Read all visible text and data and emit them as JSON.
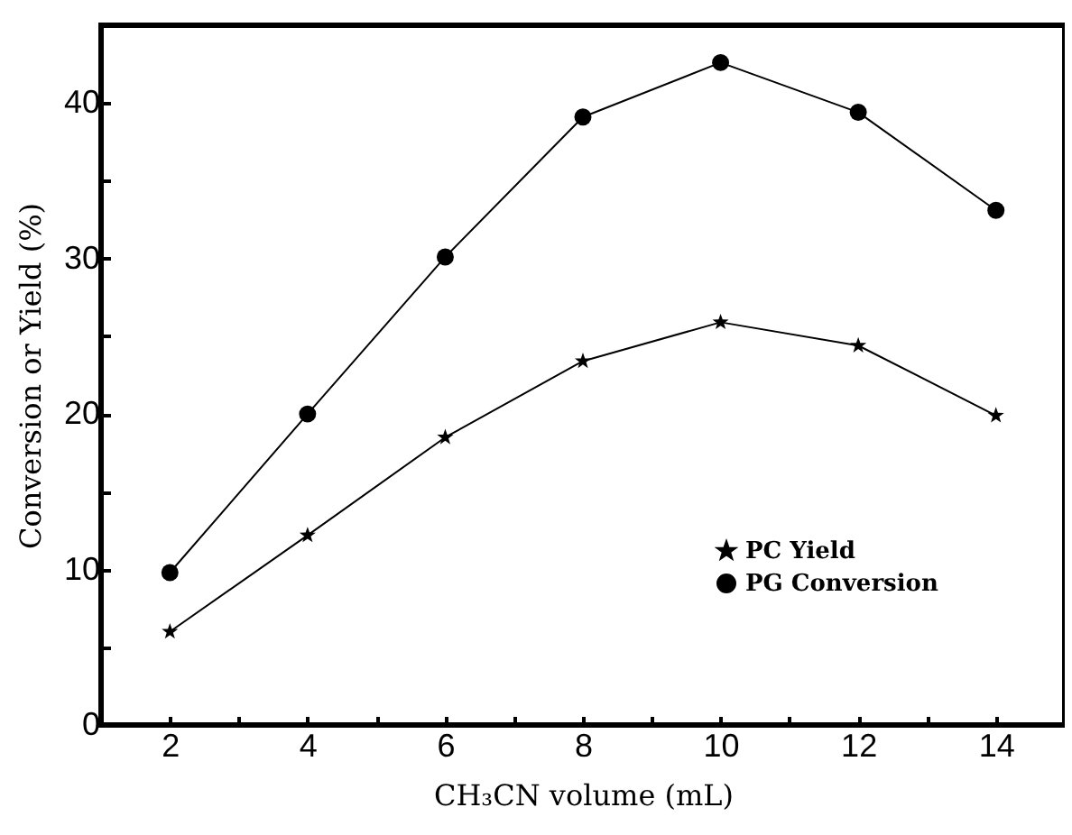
{
  "chart_data": {
    "type": "line",
    "xlabel": "CH₃CN volume  (mL)",
    "ylabel": "Conversion or Yield (%)",
    "x": [
      2,
      4,
      6,
      8,
      10,
      12,
      14
    ],
    "series": [
      {
        "name": "PC Yield",
        "color": "#000000",
        "marker": "star",
        "values": [
          6.0,
          12.2,
          18.5,
          23.4,
          25.9,
          24.4,
          19.9
        ]
      },
      {
        "name": "PG Conversion",
        "color": "#000000",
        "marker": "circle",
        "values": [
          9.8,
          20.0,
          30.1,
          39.1,
          42.6,
          39.4,
          33.1
        ]
      }
    ],
    "xlim": [
      1,
      15
    ],
    "xticks": [
      {
        "value": 1,
        "label": null
      },
      2,
      {
        "value": 3,
        "label": null
      },
      4,
      {
        "value": 5,
        "label": null
      },
      6,
      {
        "value": 7,
        "label": null
      },
      8,
      {
        "value": 9,
        "label": null
      },
      10,
      {
        "value": 11,
        "label": null
      },
      12,
      {
        "value": 13,
        "label": null
      },
      14
    ],
    "ylim": [
      0,
      45
    ],
    "yticks": [
      0,
      {
        "value": 5,
        "label": null
      },
      10,
      {
        "value": 15,
        "label": null
      },
      20,
      {
        "value": 25,
        "label": null
      },
      30,
      {
        "value": 35,
        "label": null
      },
      40
    ],
    "legend": "bottom right",
    "grid": false,
    "line_style": "solid"
  }
}
